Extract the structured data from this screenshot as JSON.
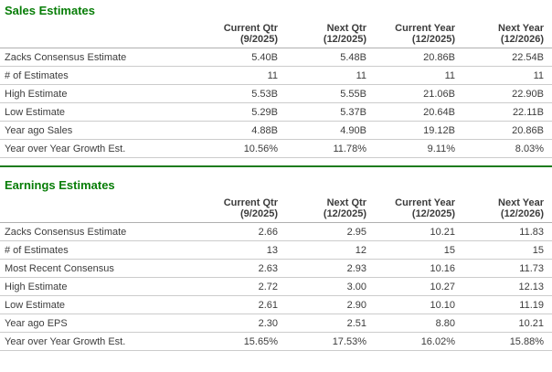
{
  "colors": {
    "accent_green": "#077d07",
    "divider_green": "#1e7c1e",
    "text": "#3c3c3c",
    "row_border": "#cccccc",
    "header_border": "#b0b0b0",
    "background": "#ffffff"
  },
  "columns": [
    {
      "line1": "Current Qtr",
      "line2": "(9/2025)"
    },
    {
      "line1": "Next Qtr",
      "line2": "(12/2025)"
    },
    {
      "line1": "Current Year",
      "line2": "(12/2025)"
    },
    {
      "line1": "Next Year",
      "line2": "(12/2026)"
    }
  ],
  "tables": [
    {
      "title": "Sales Estimates",
      "rows": [
        {
          "label": "Zacks Consensus Estimate",
          "values": [
            "5.40B",
            "5.48B",
            "20.86B",
            "22.54B"
          ]
        },
        {
          "label": "# of Estimates",
          "values": [
            "11",
            "11",
            "11",
            "11"
          ]
        },
        {
          "label": "High Estimate",
          "values": [
            "5.53B",
            "5.55B",
            "21.06B",
            "22.90B"
          ]
        },
        {
          "label": "Low Estimate",
          "values": [
            "5.29B",
            "5.37B",
            "20.64B",
            "22.11B"
          ]
        },
        {
          "label": "Year ago Sales",
          "values": [
            "4.88B",
            "4.90B",
            "19.12B",
            "20.86B"
          ]
        },
        {
          "label": "Year over Year Growth Est.",
          "values": [
            "10.56%",
            "11.78%",
            "9.11%",
            "8.03%"
          ]
        }
      ]
    },
    {
      "title": "Earnings Estimates",
      "rows": [
        {
          "label": "Zacks Consensus Estimate",
          "values": [
            "2.66",
            "2.95",
            "10.21",
            "11.83"
          ]
        },
        {
          "label": "# of Estimates",
          "values": [
            "13",
            "12",
            "15",
            "15"
          ]
        },
        {
          "label": "Most Recent Consensus",
          "values": [
            "2.63",
            "2.93",
            "10.16",
            "11.73"
          ]
        },
        {
          "label": "High Estimate",
          "values": [
            "2.72",
            "3.00",
            "10.27",
            "12.13"
          ]
        },
        {
          "label": "Low Estimate",
          "values": [
            "2.61",
            "2.90",
            "10.10",
            "11.19"
          ]
        },
        {
          "label": "Year ago EPS",
          "values": [
            "2.30",
            "2.51",
            "8.80",
            "10.21"
          ]
        },
        {
          "label": "Year over Year Growth Est.",
          "values": [
            "15.65%",
            "17.53%",
            "16.02%",
            "15.88%"
          ]
        }
      ]
    }
  ]
}
